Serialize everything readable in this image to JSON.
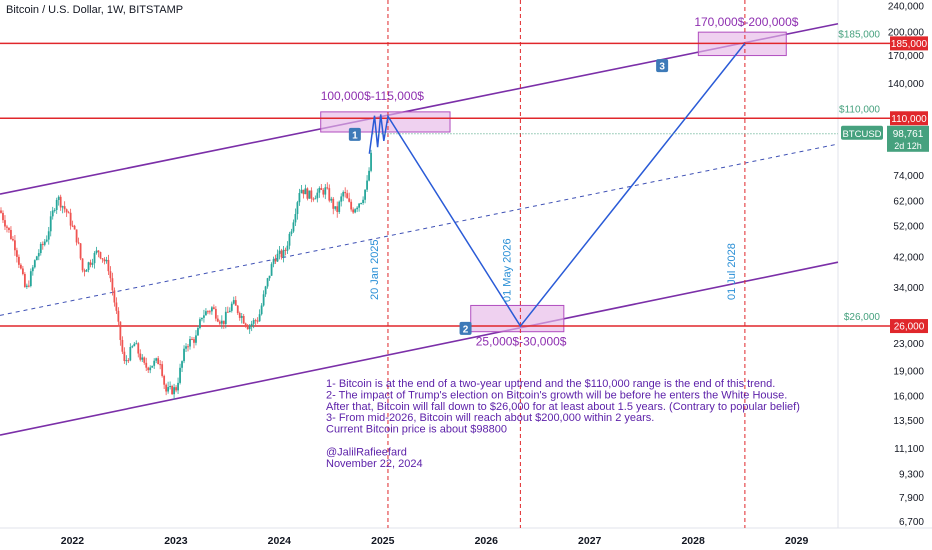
{
  "chart_title": "Bitcoin / U.S. Dollar, 1W, BITSTAMP",
  "chart_data": {
    "type": "candlestick",
    "title": "Bitcoin / U.S. Dollar, 1W, BITSTAMP",
    "y_scale": "log",
    "ylim": [
      6400,
      250000
    ],
    "xlim": [
      2021.3,
      2029.4
    ],
    "x_ticks": [
      "2022",
      "2023",
      "2024",
      "2025",
      "2026",
      "2027",
      "2028",
      "2029"
    ],
    "y_ticks": [
      {
        "v": 240000,
        "label": "240,000"
      },
      {
        "v": 200000,
        "label": "200,000"
      },
      {
        "v": 170000,
        "label": "170,000"
      },
      {
        "v": 140000,
        "label": "140,000"
      },
      {
        "v": 74000,
        "label": "74,000"
      },
      {
        "v": 62000,
        "label": "62,000"
      },
      {
        "v": 52000,
        "label": "52,000"
      },
      {
        "v": 42000,
        "label": "42,000"
      },
      {
        "v": 34000,
        "label": "34,000"
      },
      {
        "v": 23000,
        "label": "23,000"
      },
      {
        "v": 19000,
        "label": "19,000"
      },
      {
        "v": 16000,
        "label": "16,000"
      },
      {
        "v": 13500,
        "label": "13,500"
      },
      {
        "v": 11100,
        "label": "11,100"
      },
      {
        "v": 9300,
        "label": "9,300"
      },
      {
        "v": 7900,
        "label": "7,900"
      },
      {
        "v": 6700,
        "label": "6,700"
      }
    ],
    "price_path": [
      [
        2021.3,
        58000
      ],
      [
        2021.45,
        45000
      ],
      [
        2021.55,
        33000
      ],
      [
        2021.65,
        42000
      ],
      [
        2021.75,
        48000
      ],
      [
        2021.85,
        64000
      ],
      [
        2021.95,
        57000
      ],
      [
        2022.05,
        47000
      ],
      [
        2022.1,
        38000
      ],
      [
        2022.25,
        44000
      ],
      [
        2022.35,
        39000
      ],
      [
        2022.42,
        29000
      ],
      [
        2022.5,
        20000
      ],
      [
        2022.6,
        23000
      ],
      [
        2022.7,
        19500
      ],
      [
        2022.85,
        20500
      ],
      [
        2022.9,
        16500
      ],
      [
        2023.0,
        16800
      ],
      [
        2023.1,
        23000
      ],
      [
        2023.2,
        24000
      ],
      [
        2023.25,
        28000
      ],
      [
        2023.35,
        29500
      ],
      [
        2023.45,
        26500
      ],
      [
        2023.55,
        30500
      ],
      [
        2023.7,
        26000
      ],
      [
        2023.8,
        27500
      ],
      [
        2023.88,
        35000
      ],
      [
        2023.95,
        42000
      ],
      [
        2024.05,
        43000
      ],
      [
        2024.12,
        52000
      ],
      [
        2024.2,
        68000
      ],
      [
        2024.3,
        64000
      ],
      [
        2024.45,
        67000
      ],
      [
        2024.55,
        57000
      ],
      [
        2024.62,
        66000
      ],
      [
        2024.7,
        58000
      ],
      [
        2024.8,
        63000
      ],
      [
        2024.85,
        70000
      ],
      [
        2024.9,
        90000
      ],
      [
        2024.9,
        98761
      ]
    ],
    "last_price": {
      "value": 98761,
      "label": "98,761",
      "symbol": "BTCUSD",
      "countdown": "2d 12h"
    },
    "horizontal_levels": [
      {
        "value": 185000,
        "tag": "185,000",
        "label": "$185,000"
      },
      {
        "value": 110000,
        "tag": "110,000",
        "label": "$110,000"
      },
      {
        "value": 26000,
        "tag": "26,000",
        "label": "$26,000"
      }
    ],
    "channel": {
      "upper": [
        [
          2021.3,
          65000
        ],
        [
          2029.4,
          212000
        ]
      ],
      "lower": [
        [
          2021.3,
          12200
        ],
        [
          2029.4,
          40500
        ]
      ],
      "mid": [
        [
          2021.3,
          28000
        ],
        [
          2029.4,
          92000
        ]
      ]
    },
    "vertical_markers": [
      {
        "x": 2025.05,
        "label": "20 Jan 2025"
      },
      {
        "x": 2026.33,
        "label": "01 May 2026"
      },
      {
        "x": 2028.5,
        "label": "01 Jul 2028"
      }
    ],
    "forecast_path": [
      [
        2024.87,
        86000
      ],
      [
        2024.92,
        112000
      ],
      [
        2024.95,
        90000
      ],
      [
        2024.98,
        113000
      ],
      [
        2025.01,
        94000
      ],
      [
        2025.05,
        111500
      ],
      [
        2026.33,
        26000
      ],
      [
        2028.5,
        185000
      ]
    ],
    "target_zones": [
      {
        "x0": 2024.4,
        "x1": 2025.65,
        "y0": 100000,
        "y1": 115000,
        "label": "100,000$-115,000$"
      },
      {
        "x0": 2025.85,
        "x1": 2026.75,
        "y0": 25000,
        "y1": 30000,
        "label": "25,000$-30,000$"
      },
      {
        "x0": 2028.05,
        "x1": 2028.9,
        "y0": 170000,
        "y1": 200000,
        "label": "170,000$-200,000$"
      }
    ],
    "point_labels": [
      {
        "text": "1",
        "x": 2024.73,
        "y": 98000
      },
      {
        "text": "2",
        "x": 2025.8,
        "y": 25500
      },
      {
        "text": "3",
        "x": 2027.7,
        "y": 158000
      }
    ],
    "colors": {
      "up": "#26a69a",
      "down": "#ef5350",
      "level": "#e0272b",
      "channel": "#7b2fa8",
      "forecast": "#2a5bd7",
      "zone_fill": "#e6b8e8",
      "zone_stroke": "#b04dbf",
      "marker": "#2a8fd6",
      "zone_text": "#8e2fb0",
      "tag_green": "#46a17e",
      "badge": "#3d7ab8"
    }
  },
  "annotation": {
    "lines": [
      "1- Bitcoin is at the end of a two-year uptrend and the $110,000 range is the end of this trend.",
      "2- The impact of Trump's election on Bitcoin's growth will be before he enters the White House.",
      "After that, Bitcoin will fall down to $26,000 for at least about 1.5 years. (Contrary to popular belief)",
      "3- From mid-2026, Bitcoin will reach about $200,000 within 2 years.",
      "Current Bitcoin price is about $98800",
      "",
      "@JalilRafieefard",
      "November 22, 2024"
    ]
  }
}
